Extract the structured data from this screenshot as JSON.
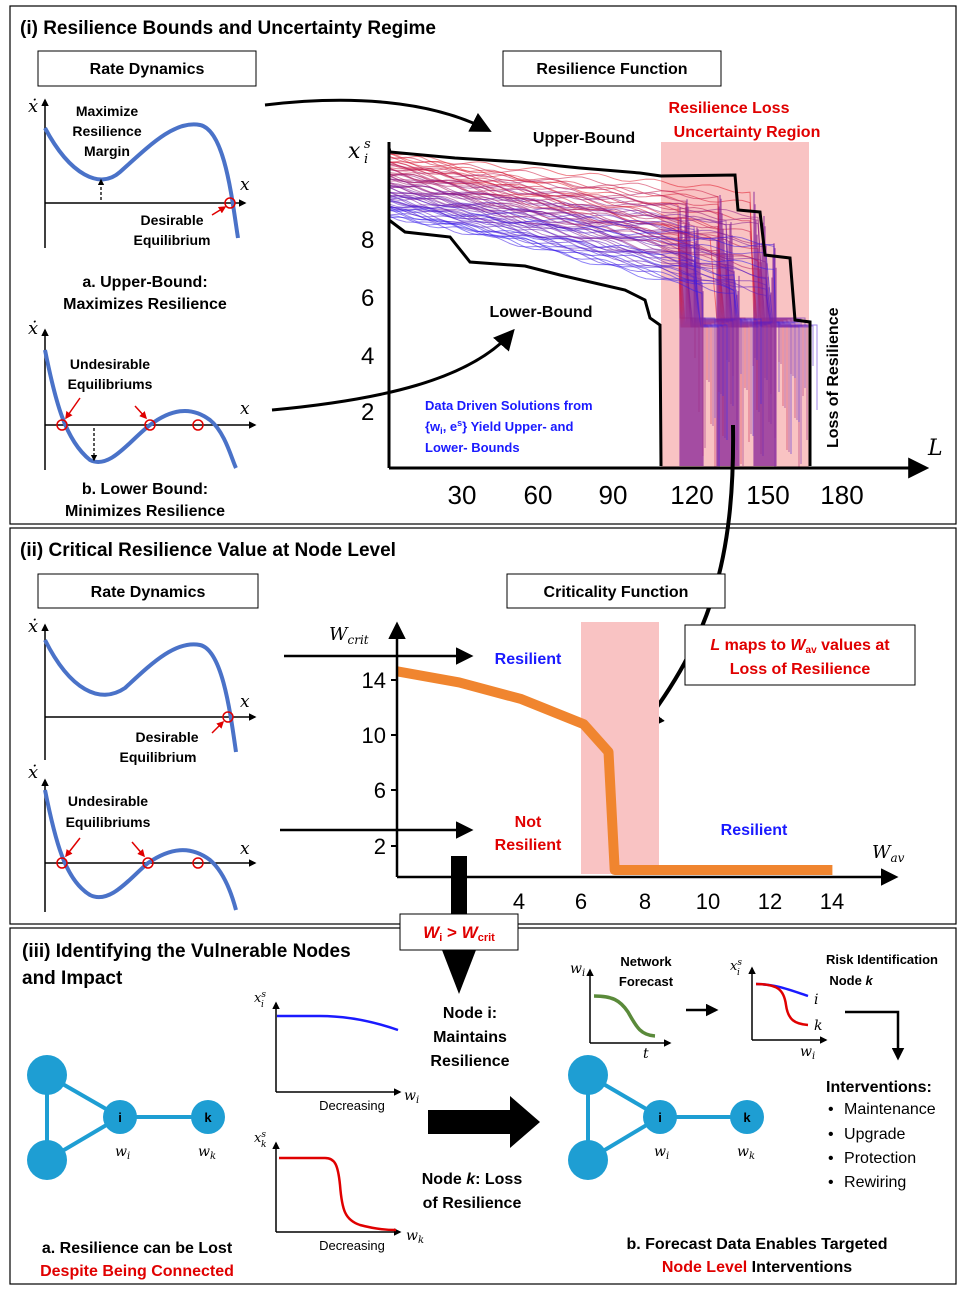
{
  "colors": {
    "blue": "#4a72c8",
    "red": "#e00000",
    "navy": "#1a1aff",
    "orange": "#f0852f",
    "node": "#1e9ed3",
    "pink": "#f9c3c3",
    "green": "#5a8a3a",
    "purple": "#8a2a9a"
  },
  "panel1": {
    "title": "(i) Resilience Bounds and Uncertainty Regime",
    "rate_box": "Rate Dynamics",
    "res_box": "Resilience Function",
    "upper": {
      "line1": "Maximize",
      "line2": "Resilience",
      "line3": "Margin",
      "eq1": "Desirable",
      "eq2": "Equilibrium",
      "cap1": "a. Upper-Bound:",
      "cap2": "Maximizes Resilience"
    },
    "lower": {
      "und1": "Undesirable",
      "und2": "Equilibriums",
      "cap1": "b. Lower Bound:",
      "cap2": "Minimizes Resilience"
    },
    "xdot": "ẋ",
    "x": "x",
    "chart": {
      "ylabel": "x",
      "ysup": "s",
      "ysub": "i",
      "xlabel": "L",
      "xticks": [
        "30",
        "60",
        "90",
        "120",
        "150",
        "180"
      ],
      "yticks": [
        "8",
        "6",
        "4",
        "2"
      ],
      "upper_label": "Upper-Bound",
      "lower_label": "Lower-Bound",
      "loss_label": "Loss of Resilience",
      "region1": "Resilience Loss",
      "region2": "Uncertainty Region",
      "dd1": "Data Driven Solutions from",
      "dd2": "{w",
      "dd2_sub": "i",
      "dd2_b": ", e",
      "dd2_sup": "s",
      "dd2_c": "} Yield Upper- and",
      "dd3": "Lower- Bounds"
    }
  },
  "panel2": {
    "title": "(ii) Critical Resilience Value at Node Level",
    "rate_box": "Rate Dynamics",
    "crit_box": "Criticality Function",
    "eq1": "Desirable",
    "eq2": "Equilibrium",
    "und1": "Undesirable",
    "und2": "Equilibriums",
    "chart": {
      "ylabel": "W",
      "ysub": "crit",
      "xlabel": "W",
      "xsub": "av",
      "yticks": [
        "14",
        "10",
        "6",
        "2"
      ],
      "xticks": [
        "4",
        "6",
        "8",
        "10",
        "12",
        "14"
      ],
      "resilient": "Resilient",
      "not1": "Not",
      "not2": "Resilient",
      "resilient2": "Resilient"
    },
    "map_box": {
      "l": "L",
      "t1": " maps to ",
      "w": "W",
      "sub": "av",
      "t2": " values at",
      "line2": "Loss of Resilience"
    }
  },
  "panel3": {
    "title1": "(iii) Identifying the Vulnerable Nodes",
    "title2": "and Impact",
    "wbox": {
      "w": "W",
      "i": "i",
      "gt": " > ",
      "w2": "W",
      "crit": "crit"
    },
    "node_i": "i",
    "node_k": "k",
    "wi": "w",
    "wi_sub": "i",
    "wk": "w",
    "wk_sub": "k",
    "decreasing": "Decreasing",
    "maint1": "Node i:",
    "maint2": "Maintains",
    "maint3": "Resilience",
    "loss1": "Node ",
    "loss1k": "k",
    "loss1b": ": Loss",
    "loss2": "of Resilience",
    "forecast1": "Network",
    "forecast2": "Forecast",
    "risk1": "Risk Identification",
    "risk2": "Node ",
    "risk2k": "k",
    "t": "t",
    "interventions_title": "Interventions:",
    "interventions": [
      "Maintenance",
      "Upgrade",
      "Protection",
      "Rewiring"
    ],
    "capa1": "a. Resilience can be Lost",
    "capa2": "Despite Being Connected",
    "capb1": "b. Forecast Data Enables Targeted",
    "capb2a": "Node Level",
    "capb2b": " Interventions"
  },
  "chart_data": [
    {
      "type": "line",
      "x": [
        0,
        30,
        60,
        90,
        110,
        120,
        150,
        165,
        180
      ],
      "series": [
        {
          "values": [
            9.8,
            9.6,
            9.3,
            9.0,
            8.7,
            8.0,
            7.8,
            5.3,
            0
          ]
        },
        {
          "values": [
            8.8,
            7.6,
            7.3,
            6.9,
            6.6,
            0,
            0,
            0,
            0
          ]
        }
      ],
      "xlabel": "L",
      "xticks": [
        30,
        60,
        90,
        120,
        150,
        180
      ],
      "yticks": [
        2,
        4,
        6,
        8
      ]
    },
    {
      "type": "line",
      "x": [
        0,
        2,
        4,
        6,
        6.8,
        7,
        8,
        10,
        12,
        14
      ],
      "series": [
        {
          "values": [
            14.8,
            14.0,
            12.8,
            11.0,
            9.0,
            0.5,
            0.5,
            0.5,
            0.5,
            0.5
          ]
        }
      ],
      "xticks": [
        4,
        6,
        8,
        10,
        12,
        14
      ],
      "yticks": [
        2,
        6,
        10,
        14
      ]
    }
  ]
}
